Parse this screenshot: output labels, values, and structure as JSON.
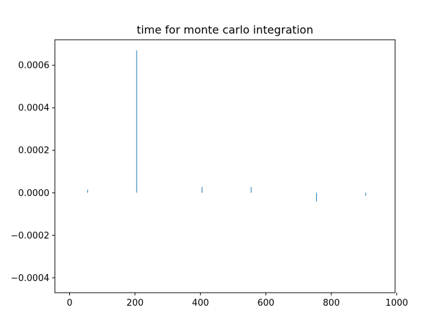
{
  "chart_data": {
    "type": "bar",
    "title": "time for monte carlo integration",
    "xlabel": "",
    "ylabel": "",
    "xlim": [
      -45,
      995
    ],
    "ylim": [
      -0.00047,
      0.00072
    ],
    "xticks": [
      0,
      200,
      400,
      600,
      800,
      1000
    ],
    "xtick_labels": [
      "0",
      "200",
      "400",
      "600",
      "800",
      "1000"
    ],
    "yticks": [
      -0.0004,
      -0.0002,
      0.0,
      0.0002,
      0.0004,
      0.0006
    ],
    "ytick_labels": [
      "−0.0004",
      "−0.0002",
      "0.0000",
      "0.0002",
      "0.0004",
      "0.0006"
    ],
    "grid": false,
    "legend": "none",
    "bar_color": "#1f77b4",
    "x": [
      55,
      205,
      405,
      555,
      755,
      905
    ],
    "values": [
      1.5e-05,
      0.00067,
      2.8e-05,
      2.7e-05,
      -4e-05,
      -1.5e-05
    ]
  }
}
